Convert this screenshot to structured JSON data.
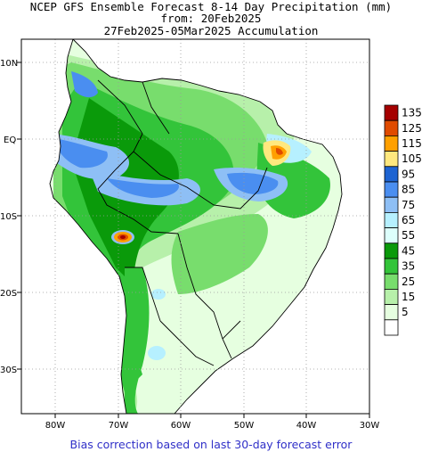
{
  "header": {
    "line1": "NCEP GFS Ensemble Forecast 8-14 Day Precipitation (mm)",
    "line2": "from: 20Feb2025",
    "line3": "27Feb2025-05Mar2025 Accumulation"
  },
  "map": {
    "lat_labels": [
      "10N",
      "EQ",
      "10S",
      "20S",
      "30S"
    ],
    "lon_labels": [
      "80W",
      "70W",
      "60W",
      "50W",
      "40W",
      "30W"
    ],
    "colors": {
      "land_dry": "#ffffff",
      "ocean": "#ffffff",
      "coast": "#000000",
      "grid": "#9a9a9a"
    }
  },
  "legend": {
    "bins": [
      {
        "label": "135",
        "color": "#a50000"
      },
      {
        "label": "125",
        "color": "#e04b00"
      },
      {
        "label": "115",
        "color": "#ffa000"
      },
      {
        "label": "105",
        "color": "#ffe87e"
      },
      {
        "label": "95",
        "color": "#1e64d2"
      },
      {
        "label": "85",
        "color": "#4a8ef0"
      },
      {
        "label": "75",
        "color": "#8ebff5"
      },
      {
        "label": "65",
        "color": "#b6f0ff"
      },
      {
        "label": "55",
        "color": "#ddfffc"
      },
      {
        "label": "45",
        "color": "#0a9a0a"
      },
      {
        "label": "35",
        "color": "#33c43a"
      },
      {
        "label": "25",
        "color": "#78dd6d"
      },
      {
        "label": "15",
        "color": "#b7f0aa"
      },
      {
        "label": "5",
        "color": "#e6ffe0"
      },
      {
        "label": "",
        "color": "#ffffff"
      }
    ]
  },
  "footer": {
    "note": "Bias correction based on last 30-day forecast error"
  }
}
